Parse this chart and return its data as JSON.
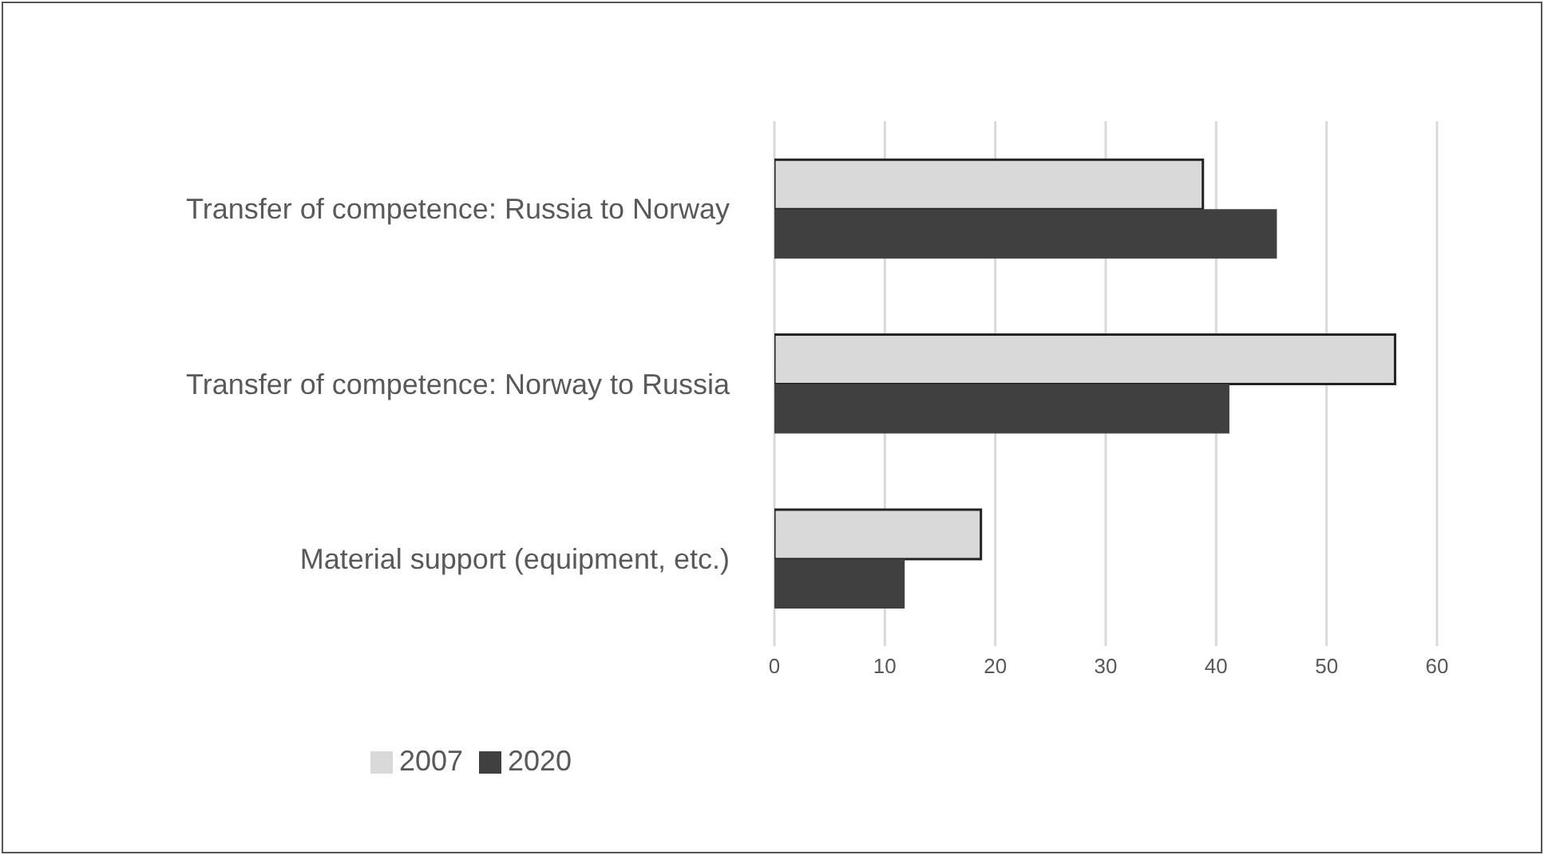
{
  "chart_data": {
    "type": "bar",
    "orientation": "horizontal",
    "categories": [
      "Transfer of competence: Russia to Norway",
      "Transfer of competence: Norway to Russia",
      "Material support (equipment, etc.)"
    ],
    "series": [
      {
        "name": "2007",
        "color": "#d9d9d9",
        "values": [
          38.8,
          56.2,
          18.7
        ]
      },
      {
        "name": "2020",
        "color": "#404040",
        "values": [
          45.5,
          41.2,
          11.8
        ]
      }
    ],
    "xlim": [
      0,
      60
    ],
    "xticks": [
      0,
      10,
      20,
      30,
      40,
      50,
      60
    ],
    "grid": "x",
    "legend": "bottom"
  }
}
